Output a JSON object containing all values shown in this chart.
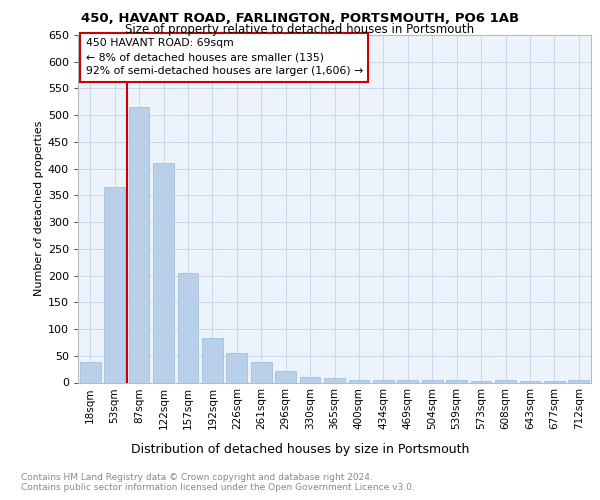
{
  "title1": "450, HAVANT ROAD, FARLINGTON, PORTSMOUTH, PO6 1AB",
  "title2": "Size of property relative to detached houses in Portsmouth",
  "xlabel": "Distribution of detached houses by size in Portsmouth",
  "ylabel": "Number of detached properties",
  "footer": "Contains HM Land Registry data © Crown copyright and database right 2024.\nContains public sector information licensed under the Open Government Licence v3.0.",
  "categories": [
    "18sqm",
    "53sqm",
    "87sqm",
    "122sqm",
    "157sqm",
    "192sqm",
    "226sqm",
    "261sqm",
    "296sqm",
    "330sqm",
    "365sqm",
    "400sqm",
    "434sqm",
    "469sqm",
    "504sqm",
    "539sqm",
    "573sqm",
    "608sqm",
    "643sqm",
    "677sqm",
    "712sqm"
  ],
  "values": [
    38,
    365,
    515,
    410,
    205,
    83,
    55,
    38,
    22,
    10,
    8,
    5,
    5,
    5,
    5,
    5,
    3,
    5,
    3,
    3,
    5
  ],
  "bar_color": "#b8d0ea",
  "bar_edge_color": "#9bbad8",
  "grid_color": "#c8d8ec",
  "bg_color": "#edf3fb",
  "vline_color": "#cc0000",
  "vline_pos": 1.5,
  "annotation_text": "450 HAVANT ROAD: 69sqm\n← 8% of detached houses are smaller (135)\n92% of semi-detached houses are larger (1,606) →",
  "annotation_box_color": "#cc0000",
  "ylim": [
    0,
    650
  ],
  "yticks": [
    0,
    50,
    100,
    150,
    200,
    250,
    300,
    350,
    400,
    450,
    500,
    550,
    600,
    650
  ]
}
